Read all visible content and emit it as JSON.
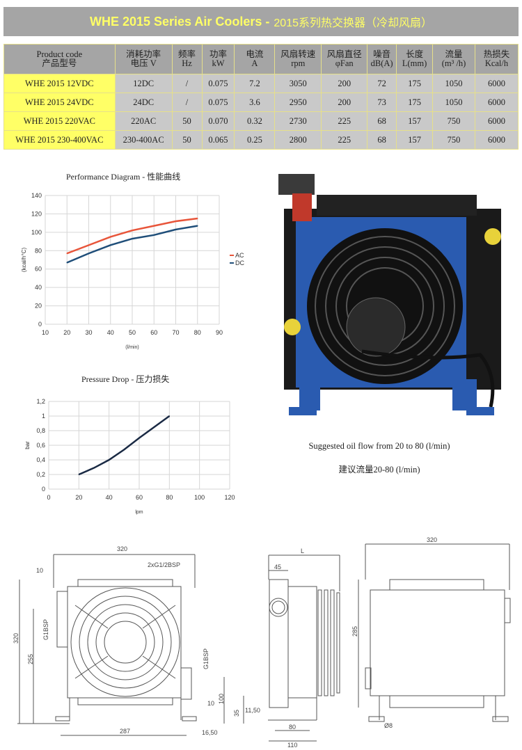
{
  "header": {
    "title_en": "WHE 2015 Series Air Coolers -",
    "title_cn": "2015系列热交换器（冷却风扇）",
    "bg_color": "#a5a5a5",
    "title_color": "#ffff66"
  },
  "table": {
    "columns": [
      [
        "Product code",
        "产品型号"
      ],
      [
        "消耗功率",
        "电压  V"
      ],
      [
        "频率",
        "Hz"
      ],
      [
        "功率",
        "kW"
      ],
      [
        "电流",
        "A"
      ],
      [
        "风扇转速",
        "rpm"
      ],
      [
        "风扇直径",
        "φFan"
      ],
      [
        "噪音",
        "dB(A)"
      ],
      [
        "长度",
        "L(mm)"
      ],
      [
        "流量",
        "(m³ /h)"
      ],
      [
        "热损失",
        "Kcal/h"
      ]
    ],
    "rows": [
      [
        "WHE 2015 12VDC",
        "12DC",
        "/",
        "0.075",
        "7.2",
        "3050",
        "200",
        "72",
        "175",
        "1050",
        "6000"
      ],
      [
        "WHE 2015 24VDC",
        "24DC",
        "/",
        "0.075",
        "3.6",
        "2950",
        "200",
        "73",
        "175",
        "1050",
        "6000"
      ],
      [
        "WHE 2015 220VAC",
        "220AC",
        "50",
        "0.070",
        "0.32",
        "2730",
        "225",
        "68",
        "157",
        "750",
        "6000"
      ],
      [
        "WHE 2015 230-400VAC",
        "230-400AC",
        "50",
        "0.065",
        "0.25",
        "2800",
        "225",
        "68",
        "157",
        "750",
        "6000"
      ]
    ]
  },
  "chart_data": [
    {
      "type": "line",
      "title": "Performance Diagram - 性能曲线",
      "xlabel": "(l/min)",
      "ylabel": "(kcal/h°C)",
      "xlim": [
        10,
        90
      ],
      "ylim": [
        0,
        140
      ],
      "xticks": [
        "10",
        "20",
        "30",
        "40",
        "50",
        "60",
        "70",
        "80",
        "90"
      ],
      "yticks": [
        "0",
        "20",
        "40",
        "60",
        "80",
        "100",
        "120",
        "140"
      ],
      "grid": true,
      "legend": "right",
      "x": [
        20,
        30,
        40,
        50,
        60,
        70,
        80
      ],
      "series": [
        {
          "name": "AC",
          "color": "#e8553a",
          "values": [
            77,
            86,
            95,
            102,
            107,
            112,
            115
          ]
        },
        {
          "name": "DC",
          "color": "#1f4e79",
          "values": [
            67,
            77,
            86,
            93,
            97,
            103,
            107
          ]
        }
      ]
    },
    {
      "type": "line",
      "title": "Pressure Drop - 压力损失",
      "xlabel": "lpm",
      "ylabel": "bar",
      "xlim": [
        0,
        120
      ],
      "ylim": [
        0,
        1.2
      ],
      "xticks": [
        "0",
        "20",
        "40",
        "60",
        "80",
        "100",
        "120"
      ],
      "yticks": [
        "0",
        "0,2",
        "0,4",
        "0,6",
        "0,8",
        "1",
        "1,2"
      ],
      "grid": true,
      "x": [
        20,
        30,
        40,
        50,
        60,
        70,
        80
      ],
      "series": [
        {
          "color": "#1a2a44",
          "values": [
            0.2,
            0.29,
            0.4,
            0.54,
            0.7,
            0.85,
            1.0
          ]
        }
      ]
    }
  ],
  "photo": {
    "caption_en": "Suggested oil flow from 20 to 80 (l/min)",
    "caption_cn": "建议流量20-80 (l/min)",
    "body_color": "#2a5bb0"
  },
  "drawing": {
    "front": {
      "width": "320",
      "ports": "2xG1/2BSP",
      "offset_top": "10",
      "height": "320",
      "port_height": "255",
      "port_left": "G1BSP",
      "port_right": "G1BSP",
      "offset_right": "10",
      "port_right_height": "100",
      "feet": "287",
      "foot_offset": "16,50"
    },
    "side": {
      "length": "L",
      "flange": "45",
      "foot_h": "35",
      "foot_off": "11,50",
      "hole_spacing": "80",
      "base": "110"
    },
    "back": {
      "width": "320",
      "height": "285",
      "hole": "Ø8"
    }
  }
}
